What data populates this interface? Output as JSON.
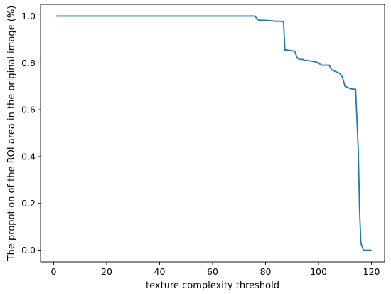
{
  "chart_data": {
    "type": "line",
    "title": "",
    "xlabel": "texture complexity threshold",
    "ylabel": "The propotion of the ROI area in the original image (%)",
    "xlim": [
      -4.95,
      124.95
    ],
    "ylim": [
      -0.05,
      1.05
    ],
    "xticks": [
      0,
      20,
      40,
      60,
      80,
      100,
      120
    ],
    "xtick_labels": [
      "0",
      "20",
      "40",
      "60",
      "80",
      "100",
      "120"
    ],
    "yticks": [
      0.0,
      0.2,
      0.4,
      0.6,
      0.8,
      1.0
    ],
    "ytick_labels": [
      "0.0",
      "0.2",
      "0.4",
      "0.6",
      "0.8",
      "1.0"
    ],
    "grid": false,
    "line_color": "#1f77b4",
    "series": [
      {
        "x": [
          1,
          20,
          40,
          60,
          76,
          77,
          78,
          80,
          82,
          84,
          86,
          86.8,
          87.3,
          88,
          90,
          91,
          92,
          93,
          94,
          95,
          96,
          97,
          98,
          99,
          100,
          101,
          102,
          103,
          104,
          105,
          106,
          107,
          108,
          109,
          110,
          111,
          112,
          113,
          114,
          115,
          115.5,
          116,
          117,
          118,
          119,
          120
        ],
        "y": [
          1.0,
          1.0,
          1.0,
          1.0,
          1.0,
          0.985,
          0.982,
          0.982,
          0.98,
          0.978,
          0.978,
          0.975,
          0.855,
          0.855,
          0.852,
          0.85,
          0.82,
          0.815,
          0.815,
          0.81,
          0.81,
          0.808,
          0.806,
          0.804,
          0.8,
          0.79,
          0.79,
          0.79,
          0.79,
          0.77,
          0.765,
          0.76,
          0.755,
          0.74,
          0.7,
          0.695,
          0.69,
          0.688,
          0.688,
          0.43,
          0.17,
          0.03,
          0.0,
          0.0,
          0.0,
          0.0
        ]
      }
    ]
  }
}
